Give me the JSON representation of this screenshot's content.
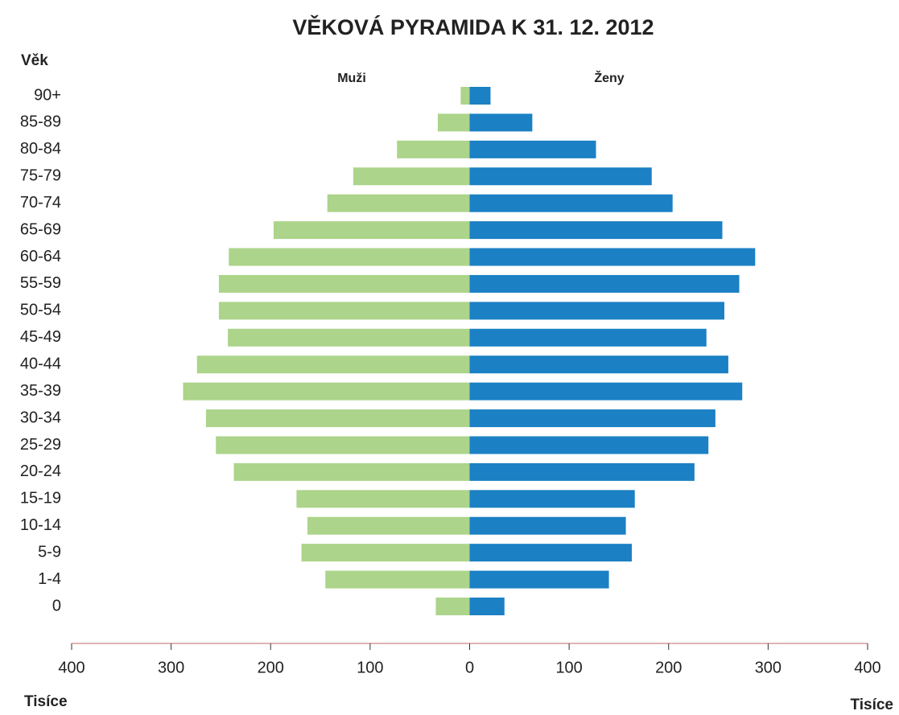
{
  "chart_data": {
    "type": "pyramid",
    "title": "VĚKOVÁ PYRAMIDA K 31. 12. 2012",
    "y_label": "Věk",
    "x_label_left": "Tisíce",
    "x_label_right": "Tisíce",
    "categories": [
      "90+",
      "85-89",
      "80-84",
      "75-79",
      "70-74",
      "65-69",
      "60-64",
      "55-59",
      "50-54",
      "45-49",
      "40-44",
      "35-39",
      "30-34",
      "25-29",
      "20-24",
      "15-19",
      "10-14",
      "5-9",
      "1-4",
      "0"
    ],
    "series": [
      {
        "name": "Muži",
        "side": "left",
        "color": "#acd48a",
        "values": [
          9,
          32,
          73,
          117,
          143,
          197,
          242,
          252,
          252,
          243,
          274,
          288,
          265,
          255,
          237,
          174,
          163,
          169,
          145,
          34
        ]
      },
      {
        "name": "Ženy",
        "side": "right",
        "color": "#1b80c4",
        "values": [
          21,
          63,
          127,
          183,
          204,
          254,
          287,
          271,
          256,
          238,
          260,
          274,
          247,
          240,
          226,
          166,
          157,
          163,
          140,
          35
        ]
      }
    ],
    "xlim": [
      -400,
      400
    ],
    "xticks": [
      {
        "value": -400,
        "label": "400"
      },
      {
        "value": -300,
        "label": "300"
      },
      {
        "value": -200,
        "label": "200"
      },
      {
        "value": -100,
        "label": "100"
      },
      0,
      100,
      200,
      300,
      400
    ]
  }
}
